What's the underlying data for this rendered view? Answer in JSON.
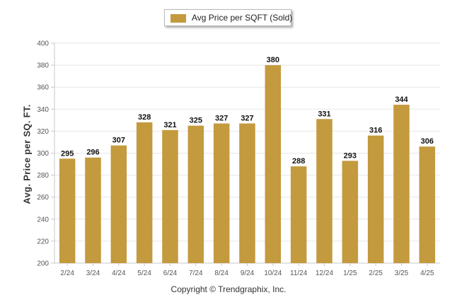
{
  "chart_data": {
    "type": "bar",
    "title": "",
    "ylabel": "Avg. Price per SQ. FT.",
    "xlabel": "",
    "categories": [
      "2/24",
      "3/24",
      "4/24",
      "5/24",
      "6/24",
      "7/24",
      "8/24",
      "9/24",
      "10/24",
      "11/24",
      "12/24",
      "1/25",
      "2/25",
      "3/25",
      "4/25"
    ],
    "series": [
      {
        "name": "Avg Price per SQFT (Sold)",
        "values": [
          295,
          296,
          307,
          328,
          321,
          325,
          327,
          327,
          380,
          288,
          331,
          293,
          316,
          344,
          306
        ]
      }
    ],
    "ylim": [
      200,
      400
    ],
    "yticks": [
      200,
      220,
      240,
      260,
      280,
      300,
      320,
      340,
      360,
      380,
      400
    ],
    "bar_color": "#C39A3E",
    "grid": true,
    "legend_position": "top-center",
    "data_labels": true
  },
  "footer": {
    "text": "Copyright © Trendgraphix, Inc."
  }
}
